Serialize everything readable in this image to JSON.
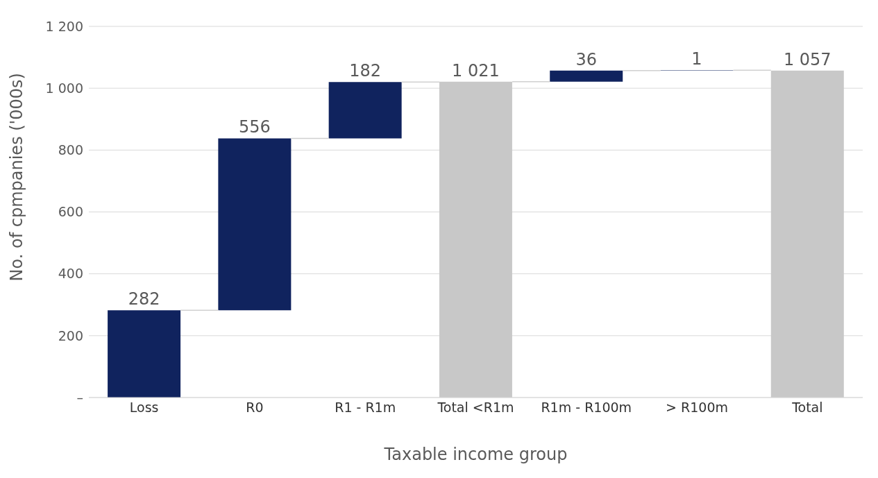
{
  "chart_data": {
    "type": "bar",
    "xlabel": "Taxable income group",
    "ylabel": "No. of cpmpanies ('000s)",
    "categories": [
      "Loss",
      "R0",
      "R1 - R1m",
      "Total <R1m",
      "R1m - R100m",
      "> R100m",
      "Total"
    ],
    "values": [
      282,
      556,
      182,
      1021,
      36,
      1,
      1057
    ],
    "base": [
      0,
      282,
      838,
      0,
      1021,
      1057,
      0
    ],
    "colors": [
      "#10235e",
      "#10235e",
      "#10235e",
      "#c8c8c8",
      "#10235e",
      "#10235e",
      "#c8c8c8"
    ],
    "value_labels": [
      "282",
      "556",
      "182",
      "1 021",
      "36",
      "1",
      "1 057"
    ],
    "ylim": [
      0,
      1200
    ],
    "yticks": [
      {
        "value": 0,
        "label": "–"
      },
      200,
      400,
      600,
      800,
      {
        "value": 1000,
        "label": "1 000"
      },
      {
        "value": 1200,
        "label": "1 200"
      }
    ],
    "grid": "y"
  }
}
